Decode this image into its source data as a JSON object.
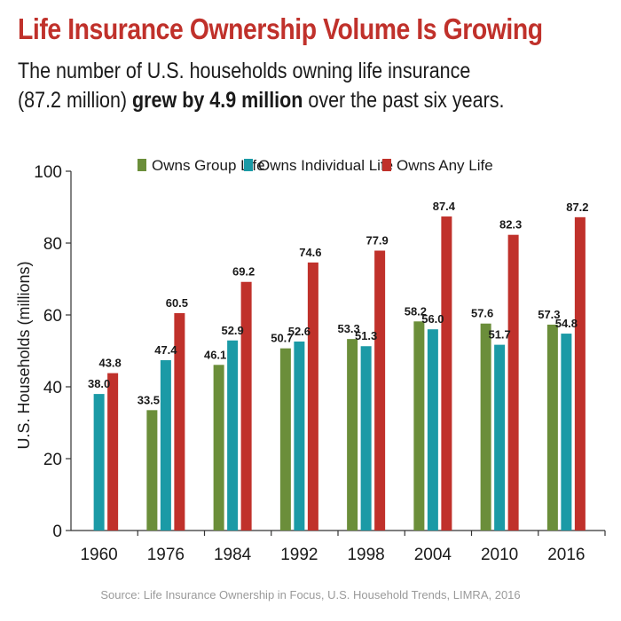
{
  "title": "Life Insurance Ownership Volume Is Growing",
  "subtitle": {
    "part1": "The number of U.S. households owning life insurance",
    "part2": "(87.2 million) ",
    "bold": "grew by 4.9 million",
    "part3": " over the past six years."
  },
  "source": "Source: Life Insurance Ownership in Focus, U.S. Household Trends, LIMRA, 2016",
  "chart_data": {
    "type": "bar",
    "ylabel": "U.S. Households (millions)",
    "xlabel": "",
    "ylim": [
      0,
      100
    ],
    "yticks": [
      0,
      20,
      40,
      60,
      80,
      100
    ],
    "grid": false,
    "legend_position": "top",
    "categories": [
      "1960",
      "1976",
      "1984",
      "1992",
      "1998",
      "2004",
      "2010",
      "2016"
    ],
    "series": [
      {
        "name": "Owns Group Life",
        "color": "#6b8e3a",
        "values": [
          null,
          33.5,
          46.1,
          50.7,
          53.3,
          58.2,
          57.6,
          57.3
        ]
      },
      {
        "name": "Owns Individual Life",
        "color": "#1b9aa6",
        "values": [
          38.0,
          47.4,
          52.9,
          52.6,
          51.3,
          56.0,
          51.7,
          54.8
        ]
      },
      {
        "name": "Owns Any Life",
        "color": "#c0312b",
        "values": [
          43.8,
          60.5,
          69.2,
          74.6,
          77.9,
          87.4,
          82.3,
          87.2
        ]
      }
    ]
  }
}
